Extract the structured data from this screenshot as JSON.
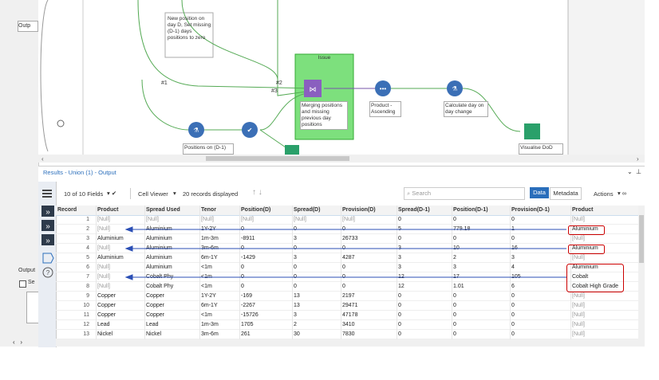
{
  "left_panel": {
    "tab": "Outp",
    "output_label": "Output",
    "checkbox_label": "Se"
  },
  "canvas": {
    "annotation": "New position on day D, Set missing (D-1) days positions to zero",
    "connections": [
      "#1",
      "#2",
      "#3"
    ],
    "container_title": "Issue",
    "tools": [
      "Merging positions and missing previous day positions",
      "Product - Ascending",
      "Calculate day on day change",
      "Positions on (D-1)",
      "Visualise DoD"
    ]
  },
  "results": {
    "title": "Results - Union (1) - Output",
    "toolbar": {
      "fields": "10 of 10 Fields",
      "cell_viewer": "Cell Viewer",
      "records": "20 records displayed",
      "search": "Search",
      "data_tab": "Data",
      "metadata_tab": "Metadata",
      "actions": "Actions"
    },
    "table": {
      "columns": [
        "Record",
        "Product",
        "Spread Used",
        "Tenor",
        "Position(D)",
        "Spread(D)",
        "Provision(D)",
        "Spread(D-1)",
        "Position(D-1)",
        "Provision(D-1)",
        "Product"
      ],
      "rows": [
        [
          "1",
          "[Null]",
          "[Null]",
          "[Null]",
          "[Null]",
          "[Null]",
          "[Null]",
          "0",
          "0",
          "0",
          "[Null]"
        ],
        [
          "2",
          "[Null]",
          "Aluminium",
          "1Y-2Y",
          "0",
          "0",
          "0",
          "5",
          "779.18",
          "1",
          "Aluminium"
        ],
        [
          "3",
          "Aluminium",
          "Aluminium",
          "1m-3m",
          "-8911",
          "3",
          "26733",
          "0",
          "0",
          "0",
          "[Null]"
        ],
        [
          "4",
          "[Null]",
          "Aluminium",
          "3m-6m",
          "0",
          "0",
          "0",
          "3",
          "10",
          "16",
          "Aluminium"
        ],
        [
          "5",
          "Aluminium",
          "Aluminium",
          "6m-1Y",
          "-1429",
          "3",
          "4287",
          "3",
          "2",
          "3",
          "[Null]"
        ],
        [
          "6",
          "[Null]",
          "Aluminium",
          "<1m",
          "0",
          "0",
          "0",
          "3",
          "3",
          "4",
          "Aluminium"
        ],
        [
          "7",
          "[Null]",
          "Cobalt Phy",
          "<1m",
          "0",
          "0",
          "0",
          "12",
          "17",
          "105",
          "Cobalt"
        ],
        [
          "8",
          "[Null]",
          "Cobalt Phy",
          "<1m",
          "0",
          "0",
          "0",
          "12",
          "1.01",
          "6",
          "Cobalt High Grade"
        ],
        [
          "9",
          "Copper",
          "Copper",
          "1Y-2Y",
          "-169",
          "13",
          "2197",
          "0",
          "0",
          "0",
          "[Null]"
        ],
        [
          "10",
          "Copper",
          "Copper",
          "6m-1Y",
          "-2267",
          "13",
          "29471",
          "0",
          "0",
          "0",
          "[Null]"
        ],
        [
          "11",
          "Copper",
          "Copper",
          "<1m",
          "-15726",
          "3",
          "47178",
          "0",
          "0",
          "0",
          "[Null]"
        ],
        [
          "12",
          "Lead",
          "Lead",
          "1m-3m",
          "1705",
          "2",
          "3410",
          "0",
          "0",
          "0",
          "[Null]"
        ],
        [
          "13",
          "Nickel",
          "Nickel",
          "3m-6m",
          "261",
          "30",
          "7830",
          "0",
          "0",
          "0",
          "[Null]"
        ]
      ]
    }
  }
}
